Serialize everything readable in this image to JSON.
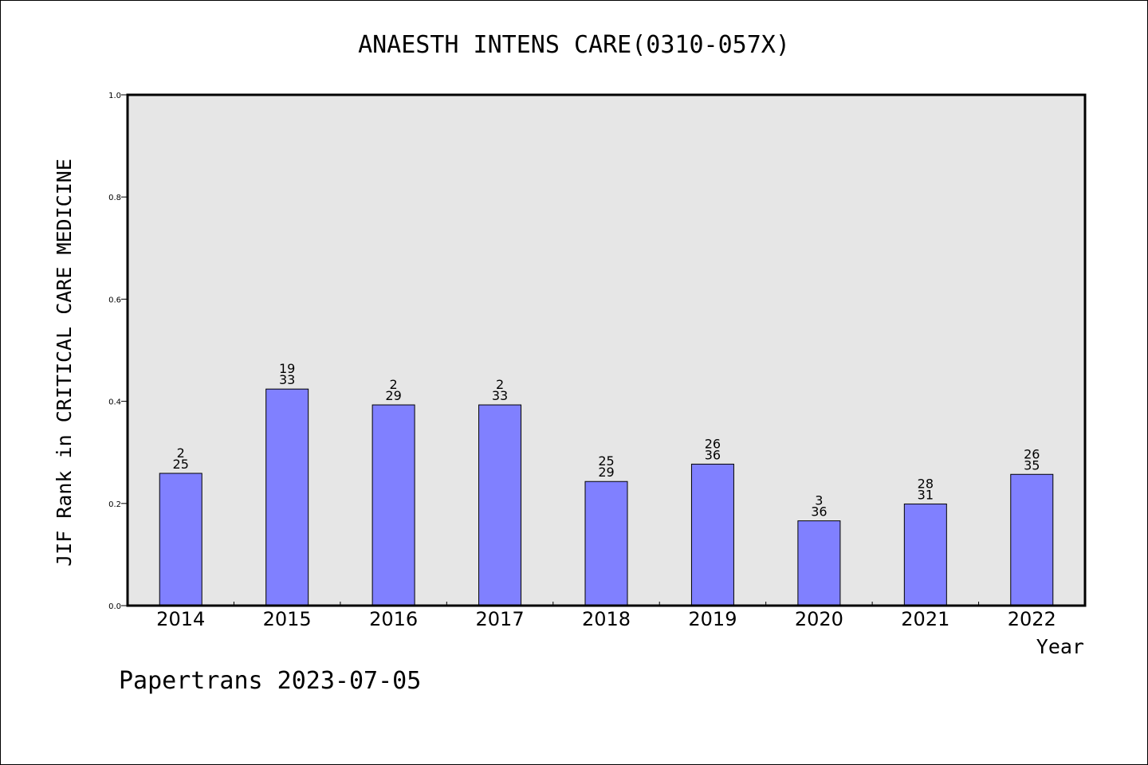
{
  "chart_data": {
    "type": "bar",
    "title": "ANAESTH INTENS CARE(0310-057X)",
    "xlabel": "Year",
    "ylabel": "JIF Rank in CRITICAL CARE MEDICINE",
    "ylim": [
      0,
      1.0
    ],
    "yticks": [
      "0.0",
      "0.2",
      "0.4",
      "0.6",
      "0.8",
      "1.0"
    ],
    "categories": [
      "2014",
      "2015",
      "2016",
      "2017",
      "2018",
      "2019",
      "2020",
      "2021",
      "2022"
    ],
    "values": [
      0.259,
      0.424,
      0.393,
      0.393,
      0.243,
      0.277,
      0.166,
      0.199,
      0.257
    ],
    "labels_top": [
      "2",
      "19",
      "2",
      "2",
      "25",
      "26",
      "3",
      "28",
      "26"
    ],
    "labels_bottom": [
      "25",
      "33",
      "29",
      "33",
      "29",
      "36",
      "36",
      "31",
      "35"
    ],
    "bar_color": "#8080ff",
    "plot_bg": "#e6e6e6",
    "grid": false
  },
  "footer": "Papertrans 2023-07-05"
}
